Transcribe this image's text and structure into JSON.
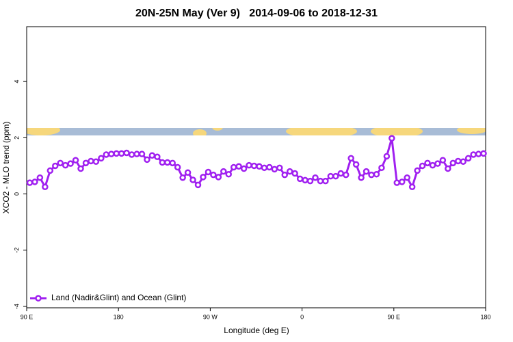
{
  "chart_data": {
    "type": "line",
    "title": "20N-25N May (Ver 9)   2014-09-06 to 2018-12-31",
    "xlabel": "Longitude (deg E)",
    "ylabel": "XCO2 - MLO trend (ppm)",
    "xlim": [
      90,
      540
    ],
    "ylim": [
      -4.05,
      5.95
    ],
    "xticks": [
      {
        "value": 90,
        "label": "90 E"
      },
      {
        "value": 180,
        "label": "180"
      },
      {
        "value": 270,
        "label": "90 W"
      },
      {
        "value": 360,
        "label": "0"
      },
      {
        "value": 450,
        "label": "90 E"
      },
      {
        "value": 540,
        "label": "180"
      }
    ],
    "yticks": [
      -4,
      -2,
      0,
      2,
      4
    ],
    "legend": "bottom-left",
    "x": [
      93,
      98,
      103,
      108,
      113,
      118,
      123,
      128,
      133,
      138,
      143,
      148,
      153,
      158,
      163,
      168,
      173,
      178,
      183,
      188,
      193,
      198,
      203,
      208,
      213,
      218,
      223,
      228,
      233,
      238,
      243,
      248,
      253,
      258,
      263,
      268,
      273,
      278,
      283,
      288,
      293,
      298,
      303,
      308,
      313,
      318,
      323,
      328,
      333,
      338,
      343,
      348,
      353,
      358,
      363,
      368,
      373,
      378,
      383,
      388,
      393,
      398,
      403,
      408,
      413,
      418,
      423,
      428,
      433,
      438,
      443,
      448,
      453,
      458,
      463,
      468,
      473,
      478,
      483,
      488,
      493,
      498,
      503,
      508,
      513,
      518,
      523,
      528,
      533,
      538
    ],
    "series": [
      {
        "name": "Land (Nadir&Glint) and Ocean (Glint)",
        "color": "#a020f0",
        "values": [
          0.4,
          0.43,
          0.58,
          0.25,
          0.83,
          1.0,
          1.1,
          1.02,
          1.08,
          1.2,
          0.9,
          1.1,
          1.17,
          1.15,
          1.27,
          1.4,
          1.42,
          1.44,
          1.44,
          1.46,
          1.4,
          1.42,
          1.42,
          1.22,
          1.37,
          1.32,
          1.12,
          1.12,
          1.1,
          0.95,
          0.58,
          0.76,
          0.5,
          0.32,
          0.6,
          0.78,
          0.68,
          0.6,
          0.8,
          0.7,
          0.95,
          0.98,
          0.9,
          1.02,
          1.0,
          0.98,
          0.93,
          0.95,
          0.88,
          0.93,
          0.68,
          0.8,
          0.73,
          0.54,
          0.49,
          0.46,
          0.58,
          0.46,
          0.46,
          0.63,
          0.63,
          0.73,
          0.68,
          1.27,
          1.05,
          0.58,
          0.8,
          0.68,
          0.7,
          0.93,
          1.34,
          1.98,
          0.4,
          0.43,
          0.58,
          0.25,
          0.83,
          1.0,
          1.1,
          1.02,
          1.08,
          1.2,
          0.9,
          1.1,
          1.17,
          1.15,
          1.27,
          1.4,
          1.42,
          1.44
        ]
      }
    ]
  }
}
